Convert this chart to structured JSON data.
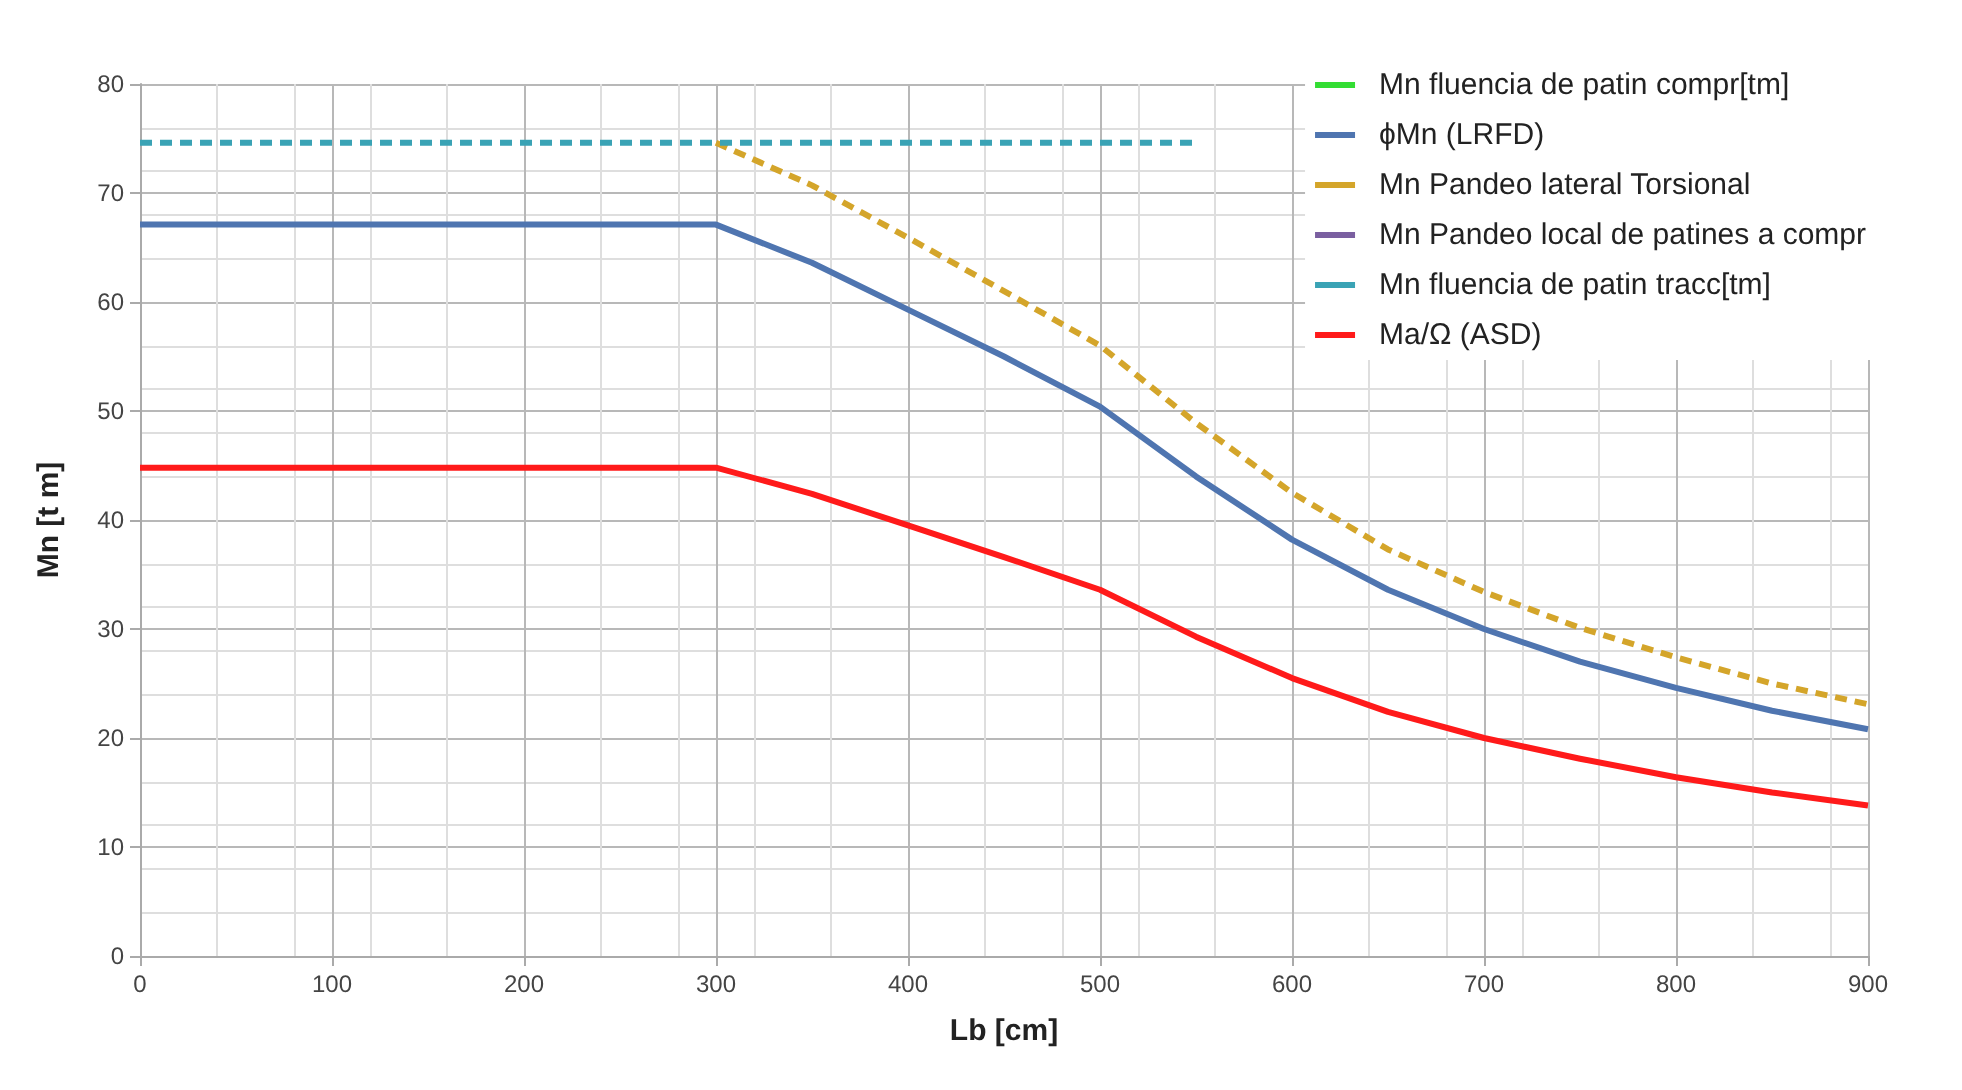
{
  "chart_data": {
    "type": "line",
    "xlabel": "Lb [cm]",
    "ylabel": "Mn [t m]",
    "x": [
      0,
      50,
      100,
      150,
      200,
      250,
      300,
      350,
      400,
      450,
      500,
      550,
      600,
      650,
      700,
      750,
      800,
      850,
      900
    ],
    "xlim": [
      0,
      900
    ],
    "xticks": [
      0,
      100,
      200,
      300,
      400,
      500,
      600,
      700,
      800,
      900
    ],
    "ylim": [
      0,
      80
    ],
    "yticks": [
      0,
      10,
      20,
      30,
      40,
      50,
      60,
      70,
      80
    ],
    "grid": true,
    "legend": "top right",
    "marker": "none",
    "series": [
      {
        "name": "Mn fluencia de patin compr[tm]",
        "color": "#33dd33",
        "line_style": "dashed",
        "values": [
          null,
          null,
          null,
          null,
          null,
          null,
          null,
          null,
          null,
          null,
          null,
          null,
          null,
          null,
          null,
          null,
          null,
          null,
          null
        ]
      },
      {
        "name": "ϕMn (LRFD)",
        "color": "#4f75b0",
        "line_style": "solid",
        "values": [
          67.1,
          67.1,
          67.1,
          67.1,
          67.1,
          67.1,
          67.1,
          63.6,
          59.3,
          55,
          50.4,
          44,
          38.2,
          33.6,
          30,
          27,
          24.6,
          22.5,
          20.8
        ]
      },
      {
        "name": "Mn Pandeo lateral Torsional",
        "color": "#d4a52a",
        "line_style": "dashed",
        "values": [
          null,
          null,
          null,
          null,
          null,
          null,
          74.6,
          70.7,
          65.9,
          61,
          56,
          48.9,
          42.5,
          37.3,
          33.4,
          30.1,
          27.4,
          25,
          23.1
        ]
      },
      {
        "name": "Mn Pandeo local de patines a compr",
        "color": "#7a5fa0",
        "line_style": "dashed",
        "values": [
          null,
          null,
          null,
          null,
          null,
          null,
          null,
          null,
          null,
          null,
          null,
          null,
          null,
          null,
          null,
          null,
          null,
          null,
          null
        ]
      },
      {
        "name": "Mn fluencia de patin tracc[tm]",
        "color": "#3aa3b5",
        "line_style": "dashed",
        "values": [
          74.6,
          74.6,
          74.6,
          74.6,
          74.6,
          74.6,
          74.6,
          74.6,
          74.6,
          74.6,
          74.6,
          74.6,
          null,
          null,
          null,
          null,
          null,
          null,
          null
        ]
      },
      {
        "name": "Ma/Ω (ASD)",
        "color": "#ff1a1a",
        "line_style": "solid",
        "values": [
          44.8,
          44.8,
          44.8,
          44.8,
          44.8,
          44.8,
          44.8,
          42.4,
          39.5,
          36.6,
          33.6,
          29.3,
          25.5,
          22.4,
          20,
          18.1,
          16.4,
          15,
          13.8
        ]
      }
    ]
  }
}
